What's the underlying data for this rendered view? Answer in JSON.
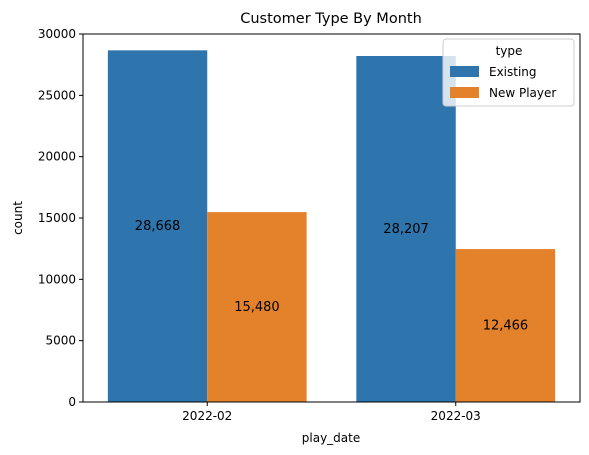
{
  "chart_data": {
    "type": "bar",
    "title": "Customer Type By Month",
    "xlabel": "play_date",
    "ylabel": "count",
    "categories": [
      "2022-02",
      "2022-03"
    ],
    "series": [
      {
        "name": "Existing",
        "values": [
          28668,
          28207
        ],
        "labels": [
          "28,668",
          "28,207"
        ],
        "color": "#2e74ad"
      },
      {
        "name": "New Player",
        "values": [
          15480,
          12466
        ],
        "labels": [
          "15,480",
          "12,466"
        ],
        "color": "#e4822b"
      }
    ],
    "ylim": [
      0,
      30000
    ],
    "yticks": [
      0,
      5000,
      10000,
      15000,
      20000,
      25000,
      30000
    ],
    "ytick_labels": [
      "0",
      "5000",
      "10000",
      "15000",
      "20000",
      "25000",
      "30000"
    ],
    "grid": false,
    "legend": {
      "title": "type",
      "placement": "top-right"
    }
  }
}
